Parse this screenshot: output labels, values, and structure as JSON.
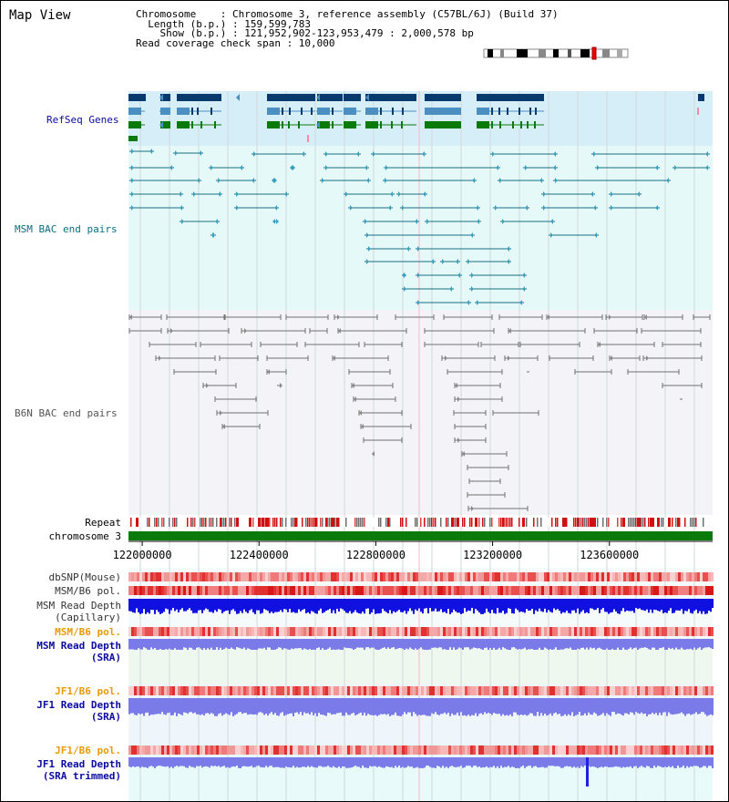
{
  "title": "Map View",
  "info": {
    "chromosome": "Chromosome    : Chromosome 3, reference assembly (C57BL/6J) (Build 37)",
    "length": "  Length (b.p.) : 159,599,783",
    "show": "    Show (b.p.) : 121,952,902-123,953,479 : 2,000,578 bp",
    "coverage": "Read coverage check span : 10,000"
  },
  "tracks": {
    "refseq": "RefSeq Genes",
    "msm_bac": "MSM BAC end pairs",
    "b6n_bac": "B6N BAC end pairs",
    "repeat": "Repeat",
    "chromosome": "chromosome 3",
    "dbsnp": "dbSNP(Mouse)",
    "msm_b6_pol": "MSM/B6 pol.",
    "msm_depth_cap_1": "MSM Read Depth",
    "msm_depth_cap_2": "(Capillary)",
    "msm_b6_pol2": "MSM/B6 pol.",
    "msm_depth_sra_1": "MSM Read Depth",
    "msm_depth_sra_2": "(SRA)",
    "jf1_b6_pol": "JF1/B6 pol.",
    "jf1_depth_1": "JF1 Read Depth",
    "jf1_depth_2": "(SRA)",
    "jf1_b6_pol2": "JF1/B6 pol.",
    "jf1_trim_1": "JF1 Read Depth",
    "jf1_trim_2": "(SRA trimmed)"
  },
  "axis": {
    "ticks": [
      "122000000",
      "122400000",
      "122800000",
      "123200000",
      "123600000"
    ],
    "tick_values": [
      122000000,
      122400000,
      122800000,
      123200000,
      123600000
    ],
    "range": [
      121952902,
      123953479
    ]
  },
  "colors": {
    "refseq_bg": "#d6eef8",
    "msm_bg": "#e6f9f9",
    "b6n_bg": "#f4f4f8",
    "gene_dark": "#083a6e",
    "gene_mid": "#4a8fc0",
    "gene_green": "#0a7a0a",
    "msm_line": "#1a6e80",
    "b6n_line": "#707070",
    "depth_blue": "#1010e0",
    "depth_light": "#7a7ae8",
    "chrom_green": "#0a7a0a",
    "label_blue": "#0a0aa0",
    "label_teal": "#0a6e80",
    "label_orange": "#e89a0a"
  }
}
